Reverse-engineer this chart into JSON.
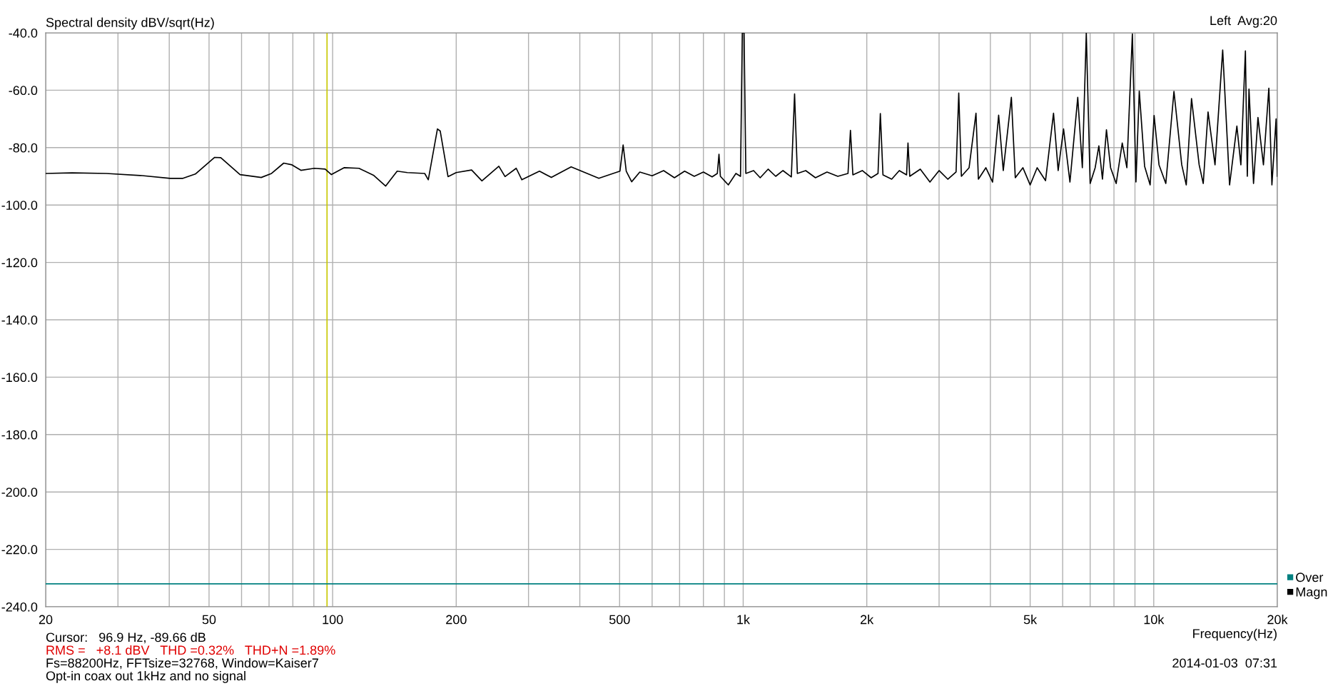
{
  "chart_data": {
    "type": "line",
    "title": "Spectral density dBV/sqrt(Hz)",
    "xlabel": "Frequency(Hz)",
    "log": "x",
    "xlim": [
      20,
      20000
    ],
    "ylim": [
      -240,
      -40
    ],
    "yticks": [
      {
        "value": -240,
        "label": "-240.0"
      },
      {
        "value": -220,
        "label": "-220.0"
      },
      {
        "value": -200,
        "label": "-200.0"
      },
      {
        "value": -180,
        "label": "-180.0"
      },
      {
        "value": -160,
        "label": "-160.0"
      },
      {
        "value": -140,
        "label": "-140.0"
      },
      {
        "value": -120,
        "label": "-120.0"
      },
      {
        "value": -100,
        "label": "-100.0"
      },
      {
        "value": -80,
        "label": "-80.0"
      },
      {
        "value": -60,
        "label": "-60.0"
      },
      {
        "value": -40,
        "label": "-40.0"
      }
    ],
    "xticks": [
      20,
      {
        "value": 30,
        "label": null
      },
      {
        "value": 40,
        "label": null
      },
      50,
      {
        "value": 60,
        "label": null
      },
      {
        "value": 70,
        "label": null
      },
      {
        "value": 80,
        "label": null
      },
      {
        "value": 90,
        "label": null
      },
      100,
      200,
      {
        "value": 300,
        "label": null
      },
      {
        "value": 400,
        "label": null
      },
      500,
      {
        "value": 600,
        "label": null
      },
      {
        "value": 700,
        "label": null
      },
      {
        "value": 800,
        "label": null
      },
      {
        "value": 900,
        "label": null
      },
      {
        "value": 1000,
        "label": "1k"
      },
      {
        "value": 2000,
        "label": "2k"
      },
      {
        "value": 3000,
        "label": null
      },
      {
        "value": 4000,
        "label": null
      },
      {
        "value": 5000,
        "label": "5k"
      },
      {
        "value": 6000,
        "label": null
      },
      {
        "value": 7000,
        "label": null
      },
      {
        "value": 8000,
        "label": null
      },
      {
        "value": 9000,
        "label": null
      },
      {
        "value": 10000,
        "label": "10k"
      },
      {
        "value": 20000,
        "label": "20k"
      }
    ],
    "grid": true,
    "legend": "bottom right",
    "marker": "none",
    "line_style": "solid",
    "ref_lines": [
      {
        "axis": "x",
        "value": 96.9,
        "color": "#c8c800"
      }
    ],
    "series": [
      {
        "name": "Over",
        "color": "#008080",
        "x": [
          20,
          20000
        ],
        "values": [
          -232,
          -232
        ]
      },
      {
        "name": "Magn",
        "color": "#000000",
        "x": [
          20,
          23.2,
          28.1,
          34,
          40.2,
          43.2,
          46.3,
          51.6,
          53.4,
          59.5,
          64.6,
          67,
          71,
          76,
          79.6,
          83.7,
          90.3,
          95.9,
          99.3,
          106.6,
          115.9,
          126,
          134.6,
          143.6,
          152,
          167.6,
          171,
          180,
          182.8,
          191,
          200,
          218,
          231,
          254,
          263,
          280,
          289,
          319,
          341,
          381,
          445,
          501,
          510,
          519,
          535,
          560,
          600,
          640,
          680,
          720,
          760,
          800,
          840,
          865,
          873,
          880,
          920,
          960,
          985,
          995,
          1005,
          1015,
          1060,
          1100,
          1150,
          1200,
          1250,
          1310,
          1334,
          1355,
          1420,
          1500,
          1600,
          1700,
          1800,
          1825,
          1850,
          1950,
          2050,
          2130,
          2158,
          2190,
          2300,
          2400,
          2500,
          2520,
          2545,
          2700,
          2850,
          3000,
          3150,
          3300,
          3350,
          3400,
          3550,
          3690,
          3740,
          3900,
          4050,
          4190,
          4300,
          4500,
          4600,
          4800,
          5000,
          5200,
          5450,
          5700,
          5850,
          6030,
          6250,
          6530,
          6700,
          6850,
          7000,
          7200,
          7350,
          7500,
          7670,
          7850,
          8100,
          8380,
          8600,
          8870,
          9050,
          9220,
          9500,
          9800,
          10020,
          10300,
          10700,
          11200,
          11700,
          12000,
          12360,
          12900,
          13200,
          13560,
          14100,
          14720,
          15300,
          15940,
          16300,
          16720,
          16900,
          17060,
          17500,
          17940,
          18500,
          19070,
          19400,
          19860,
          20000
        ],
        "values": [
          -89.0,
          -88.8,
          -89.0,
          -89.7,
          -90.7,
          -90.7,
          -89.2,
          -83.4,
          -83.5,
          -89.4,
          -90.1,
          -90.4,
          -89.0,
          -85.4,
          -86.0,
          -87.9,
          -87.2,
          -87.5,
          -89.4,
          -87.0,
          -87.2,
          -89.7,
          -93.4,
          -88.2,
          -88.7,
          -89.0,
          -91.2,
          -73.5,
          -74.2,
          -90.1,
          -88.7,
          -87.8,
          -91.6,
          -86.5,
          -90.1,
          -87.2,
          -91.2,
          -88.2,
          -90.4,
          -86.7,
          -90.7,
          -88.2,
          -79.1,
          -88.2,
          -91.9,
          -88.5,
          -89.8,
          -88.0,
          -90.5,
          -88.2,
          -90.0,
          -88.5,
          -90.2,
          -89.0,
          -82.3,
          -90.0,
          -93.0,
          -89.0,
          -90.0,
          -40,
          -40,
          -89.0,
          -88.0,
          -90.5,
          -87.5,
          -90.0,
          -88.0,
          -90.2,
          -61.3,
          -89.0,
          -88.0,
          -90.5,
          -88.5,
          -90.0,
          -89.0,
          -74.0,
          -89.5,
          -88.0,
          -90.5,
          -89.0,
          -68.1,
          -89.5,
          -91.0,
          -88.0,
          -89.5,
          -78.4,
          -90.0,
          -87.5,
          -92.0,
          -88.0,
          -91.0,
          -88.5,
          -61.0,
          -90.0,
          -87.0,
          -68.0,
          -91.0,
          -87.0,
          -92.0,
          -68.7,
          -88.0,
          -62.5,
          -90.5,
          -87.0,
          -93.0,
          -87.0,
          -91.5,
          -68.0,
          -88.0,
          -73.5,
          -92.0,
          -62.5,
          -87.0,
          -40,
          -92.5,
          -87.0,
          -79.4,
          -91.0,
          -73.8,
          -87.0,
          -92.5,
          -78.4,
          -87.0,
          -40.4,
          -92.0,
          -60.3,
          -86.5,
          -93.0,
          -68.8,
          -86.0,
          -92.5,
          -60.4,
          -86.0,
          -93.0,
          -62.9,
          -86.0,
          -92.5,
          -67.6,
          -86.0,
          -46.0,
          -93.0,
          -72.5,
          -86.0,
          -46.3,
          -90.0,
          -59.6,
          -92.5,
          -69.5,
          -86.0,
          -59.3,
          -93.0,
          -70.0,
          -90.0
        ]
      }
    ],
    "annotations": [
      "Left  Avg:20",
      "Cursor:   96.9 Hz, -89.66 dB",
      "RMS =   +8.1 dBV   THD =0.32%   THD+N =1.89%",
      "Fs=88200Hz, FFTsize=32768, Window=Kaiser7",
      "Opt-in coax out 1kHz and no signal",
      "2014-01-03  07:31"
    ]
  }
}
